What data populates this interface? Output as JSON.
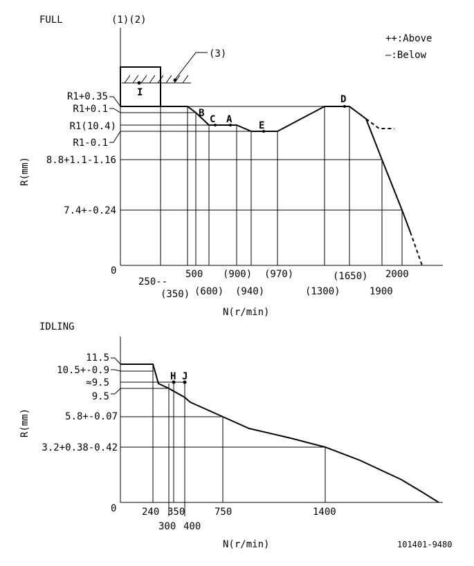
{
  "full": {
    "title": "FULL",
    "top_label": "(1)(2)",
    "callout_3": "(3)",
    "legend_above": "++:Above",
    "legend_below": "—:Below",
    "y_axis_label": "R(mm)",
    "x_axis_label": "N(r/min)",
    "origin": "0",
    "y_labels": [
      "R1+0.35",
      "R1+0.1",
      "R1(10.4)",
      "R1-0.1",
      "8.8+1.1-1.16",
      "7.4+-0.24"
    ],
    "x_labels_top": [
      "250--",
      "500",
      "(900)",
      "(970)",
      "(1650)",
      "2000"
    ],
    "x_labels_bottom": [
      "(350)",
      "(600)",
      "(940)",
      "(1300)",
      "1900"
    ],
    "points": [
      "I",
      "B",
      "C",
      "A",
      "E",
      "D"
    ]
  },
  "idling": {
    "title": "IDLING",
    "y_axis_label": "R(mm)",
    "x_axis_label": "N(r/min)",
    "origin": "0",
    "y_labels": [
      "11.5",
      "10.5+-0.9",
      "≈9.5",
      "9.5",
      "5.8+-0.07",
      "3.2+0.38-0.42"
    ],
    "x_labels_top": [
      "240",
      "350",
      "750",
      "1400"
    ],
    "x_labels_bottom": [
      "300",
      "400"
    ],
    "points": [
      "H",
      "J"
    ]
  },
  "doc_code": "101401-9480"
}
